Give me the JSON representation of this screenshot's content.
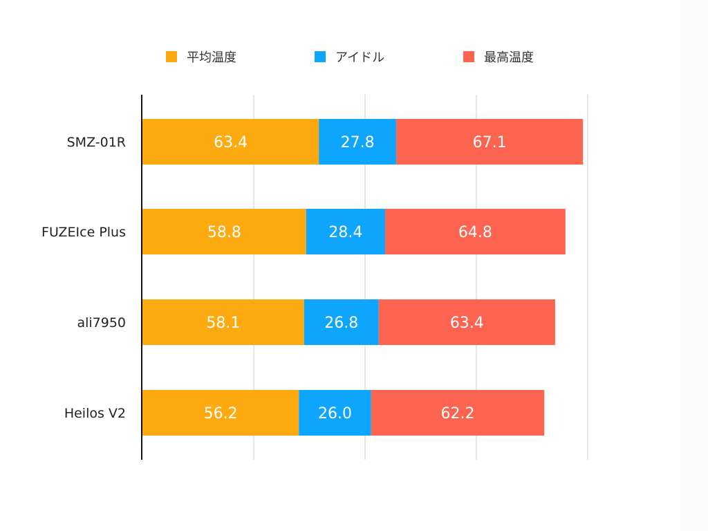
{
  "chart_data": {
    "type": "bar",
    "orientation": "horizontal",
    "stacked": true,
    "categories": [
      "SMZ-01R",
      "FUZEIce Plus",
      "ali7950",
      "Heilos V2"
    ],
    "series": [
      {
        "name": "平均温度",
        "color": "#FCAA0F",
        "values": [
          63.4,
          58.8,
          58.1,
          56.2
        ]
      },
      {
        "name": "アイドル",
        "color": "#0DA5FD",
        "values": [
          27.8,
          28.4,
          26.8,
          26.0
        ]
      },
      {
        "name": "最高温度",
        "color": "#FD6450",
        "values": [
          67.1,
          64.8,
          63.4,
          62.2
        ]
      }
    ],
    "xlim": [
      0,
      160
    ],
    "grid": true,
    "legend_position": "top",
    "data_label_color": "#ffffff",
    "axis_color": "#111111",
    "grid_color": "#cccccc",
    "category_label_color": "#222222"
  }
}
